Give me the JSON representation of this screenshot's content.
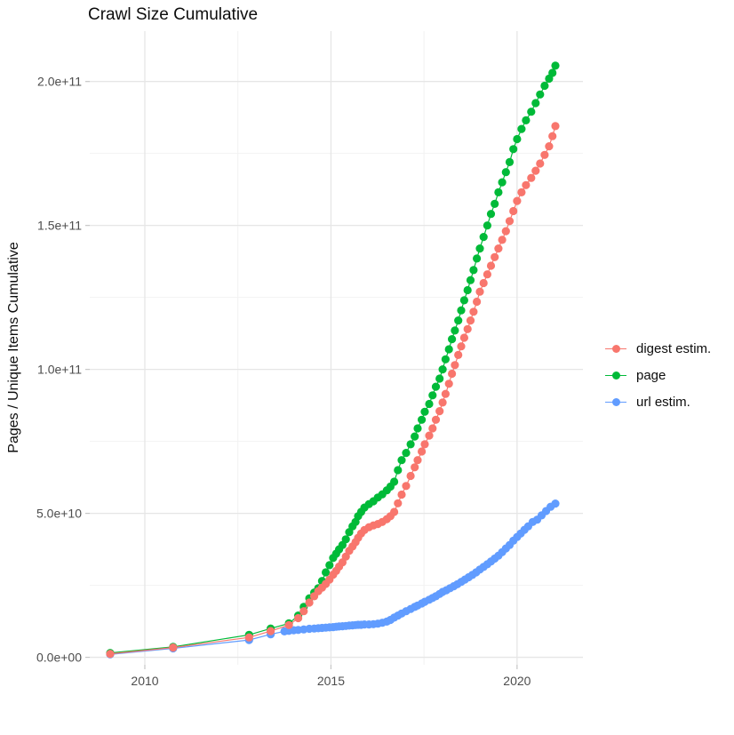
{
  "title": "Crawl Size Cumulative",
  "y_axis_title": "Pages / Unique Items Cumulative",
  "legend": {
    "items": [
      {
        "label": "digest estim.",
        "color": "#F8766D"
      },
      {
        "label": "page",
        "color": "#00BA38"
      },
      {
        "label": "url estim.",
        "color": "#619CFF"
      }
    ]
  },
  "colors": {
    "digest": "#F8766D",
    "page": "#00BA38",
    "url": "#619CFF",
    "grid_major": "#e6e6e6",
    "grid_minor": "#f2f2f2",
    "tick_mark": "#c6c6c6",
    "axis_text": "#4d4d4d"
  },
  "chart_data": {
    "type": "scatter",
    "title": "Crawl Size Cumulative",
    "xlabel": "",
    "ylabel": "Pages / Unique Items Cumulative",
    "xlim": [
      2008.52,
      2021.77
    ],
    "ylim": [
      -2600000000.0,
      217500000000.0
    ],
    "grid": true,
    "legend_position": "right",
    "x_ticks": {
      "values": [
        2010,
        2015,
        2020
      ],
      "labels": [
        "2010",
        "2015",
        "2020"
      ],
      "minor": [
        2012.5,
        2017.5
      ]
    },
    "y_ticks": {
      "values": [
        0,
        50000000000.0,
        100000000000.0,
        150000000000.0,
        200000000000.0
      ],
      "labels": [
        "0.0e+00",
        "5.0e+10",
        "1.0e+11",
        "1.5e+11",
        "2.0e+11"
      ],
      "minor": [
        25000000000.0,
        75000000000.0,
        125000000000.0,
        175000000000.0
      ]
    },
    "series": [
      {
        "name": "digest estim.",
        "color": "#F8766D",
        "points": [
          [
            2009.07,
            1200000000.0
          ],
          [
            2010.76,
            3400000000.0
          ],
          [
            2012.8,
            6900000000.0
          ],
          [
            2013.38,
            9100000000.0
          ],
          [
            2013.87,
            11200000000.0
          ],
          [
            2014.12,
            13600000000.0
          ],
          [
            2014.27,
            16000000000.0
          ],
          [
            2014.42,
            19000000000.0
          ],
          [
            2014.55,
            21200000000.0
          ],
          [
            2014.66,
            23000000000.0
          ],
          [
            2014.76,
            24200000000.0
          ],
          [
            2014.86,
            25500000000.0
          ],
          [
            2014.96,
            27000000000.0
          ],
          [
            2015.06,
            28700000000.0
          ],
          [
            2015.14,
            30000000000.0
          ],
          [
            2015.22,
            31500000000.0
          ],
          [
            2015.31,
            33000000000.0
          ],
          [
            2015.4,
            35000000000.0
          ],
          [
            2015.49,
            37000000000.0
          ],
          [
            2015.58,
            38500000000.0
          ],
          [
            2015.66,
            40000000000.0
          ],
          [
            2015.73,
            41500000000.0
          ],
          [
            2015.81,
            43000000000.0
          ],
          [
            2015.9,
            44200000000.0
          ],
          [
            2016.02,
            45200000000.0
          ],
          [
            2016.14,
            45800000000.0
          ],
          [
            2016.26,
            46300000000.0
          ],
          [
            2016.38,
            47000000000.0
          ],
          [
            2016.5,
            48000000000.0
          ],
          [
            2016.6,
            49000000000.0
          ],
          [
            2016.7,
            50500000000.0
          ],
          [
            2016.8,
            53500000000.0
          ],
          [
            2016.9,
            56500000000.0
          ],
          [
            2017.02,
            59500000000.0
          ],
          [
            2017.14,
            63000000000.0
          ],
          [
            2017.25,
            66000000000.0
          ],
          [
            2017.33,
            68500000000.0
          ],
          [
            2017.44,
            71500000000.0
          ],
          [
            2017.52,
            74000000000.0
          ],
          [
            2017.64,
            77000000000.0
          ],
          [
            2017.73,
            79500000000.0
          ],
          [
            2017.82,
            82500000000.0
          ],
          [
            2017.92,
            85500000000.0
          ],
          [
            2018.0,
            88500000000.0
          ],
          [
            2018.08,
            91500000000.0
          ],
          [
            2018.17,
            95000000000.0
          ],
          [
            2018.25,
            98500000000.0
          ],
          [
            2018.33,
            101500000000.0
          ],
          [
            2018.42,
            105000000000.0
          ],
          [
            2018.5,
            108000000000.0
          ],
          [
            2018.58,
            111000000000.0
          ],
          [
            2018.67,
            114000000000.0
          ],
          [
            2018.75,
            117000000000.0
          ],
          [
            2018.83,
            120000000000.0
          ],
          [
            2018.92,
            123500000000.0
          ],
          [
            2019.0,
            127000000000.0
          ],
          [
            2019.1,
            130000000000.0
          ],
          [
            2019.2,
            133000000000.0
          ],
          [
            2019.3,
            136000000000.0
          ],
          [
            2019.4,
            139000000000.0
          ],
          [
            2019.5,
            142000000000.0
          ],
          [
            2019.6,
            145000000000.0
          ],
          [
            2019.7,
            148000000000.0
          ],
          [
            2019.8,
            151500000000.0
          ],
          [
            2019.9,
            155000000000.0
          ],
          [
            2020.0,
            158500000000.0
          ],
          [
            2020.12,
            161500000000.0
          ],
          [
            2020.24,
            164000000000.0
          ],
          [
            2020.38,
            166500000000.0
          ],
          [
            2020.5,
            169000000000.0
          ],
          [
            2020.62,
            171500000000.0
          ],
          [
            2020.74,
            174500000000.0
          ],
          [
            2020.86,
            177500000000.0
          ],
          [
            2020.95,
            181000000000.0
          ],
          [
            2021.03,
            184500000000.0
          ]
        ]
      },
      {
        "name": "page",
        "color": "#00BA38",
        "points": [
          [
            2009.07,
            1500000000.0
          ],
          [
            2010.76,
            3600000000.0
          ],
          [
            2012.8,
            7800000000.0
          ],
          [
            2013.38,
            10000000000.0
          ],
          [
            2013.87,
            11800000000.0
          ],
          [
            2014.12,
            14500000000.0
          ],
          [
            2014.27,
            17500000000.0
          ],
          [
            2014.42,
            20500000000.0
          ],
          [
            2014.55,
            22500000000.0
          ],
          [
            2014.66,
            24000000000.0
          ],
          [
            2014.76,
            26500000000.0
          ],
          [
            2014.86,
            29500000000.0
          ],
          [
            2014.96,
            32000000000.0
          ],
          [
            2015.06,
            34500000000.0
          ],
          [
            2015.14,
            36000000000.0
          ],
          [
            2015.22,
            37500000000.0
          ],
          [
            2015.31,
            39000000000.0
          ],
          [
            2015.4,
            41000000000.0
          ],
          [
            2015.49,
            43500000000.0
          ],
          [
            2015.58,
            45500000000.0
          ],
          [
            2015.66,
            47000000000.0
          ],
          [
            2015.73,
            49000000000.0
          ],
          [
            2015.81,
            50500000000.0
          ],
          [
            2015.9,
            52000000000.0
          ],
          [
            2016.02,
            53200000000.0
          ],
          [
            2016.14,
            54200000000.0
          ],
          [
            2016.26,
            55500000000.0
          ],
          [
            2016.38,
            56600000000.0
          ],
          [
            2016.5,
            58000000000.0
          ],
          [
            2016.6,
            59300000000.0
          ],
          [
            2016.7,
            61000000000.0
          ],
          [
            2016.8,
            65000000000.0
          ],
          [
            2016.9,
            68500000000.0
          ],
          [
            2017.02,
            71000000000.0
          ],
          [
            2017.14,
            74000000000.0
          ],
          [
            2017.25,
            76700000000.0
          ],
          [
            2017.33,
            79500000000.0
          ],
          [
            2017.44,
            82500000000.0
          ],
          [
            2017.52,
            85300000000.0
          ],
          [
            2017.64,
            88000000000.0
          ],
          [
            2017.73,
            91000000000.0
          ],
          [
            2017.82,
            94000000000.0
          ],
          [
            2017.92,
            96800000000.0
          ],
          [
            2018.0,
            100000000000.0
          ],
          [
            2018.08,
            103500000000.0
          ],
          [
            2018.17,
            107000000000.0
          ],
          [
            2018.25,
            110500000000.0
          ],
          [
            2018.33,
            113500000000.0
          ],
          [
            2018.42,
            117000000000.0
          ],
          [
            2018.5,
            120500000000.0
          ],
          [
            2018.58,
            124000000000.0
          ],
          [
            2018.67,
            127500000000.0
          ],
          [
            2018.75,
            131000000000.0
          ],
          [
            2018.83,
            134500000000.0
          ],
          [
            2018.92,
            138500000000.0
          ],
          [
            2019.0,
            142000000000.0
          ],
          [
            2019.1,
            146000000000.0
          ],
          [
            2019.2,
            150000000000.0
          ],
          [
            2019.3,
            154000000000.0
          ],
          [
            2019.4,
            157500000000.0
          ],
          [
            2019.5,
            161500000000.0
          ],
          [
            2019.6,
            165000000000.0
          ],
          [
            2019.7,
            168500000000.0
          ],
          [
            2019.8,
            172000000000.0
          ],
          [
            2019.9,
            176500000000.0
          ],
          [
            2020.0,
            180000000000.0
          ],
          [
            2020.12,
            183500000000.0
          ],
          [
            2020.24,
            186500000000.0
          ],
          [
            2020.38,
            189500000000.0
          ],
          [
            2020.5,
            192500000000.0
          ],
          [
            2020.62,
            195500000000.0
          ],
          [
            2020.74,
            198500000000.0
          ],
          [
            2020.86,
            201000000000.0
          ],
          [
            2020.95,
            203000000000.0
          ],
          [
            2021.03,
            205500000000.0
          ]
        ]
      },
      {
        "name": "url estim.",
        "color": "#619CFF",
        "points": [
          [
            2009.07,
            1000000000.0
          ],
          [
            2010.76,
            3100000000.0
          ],
          [
            2012.8,
            6000000000.0
          ],
          [
            2013.38,
            8000000000.0
          ],
          [
            2013.75,
            9000000000.0
          ],
          [
            2013.87,
            9200000000.0
          ],
          [
            2014.0,
            9400000000.0
          ],
          [
            2014.12,
            9500000000.0
          ],
          [
            2014.27,
            9700000000.0
          ],
          [
            2014.42,
            9900000000.0
          ],
          [
            2014.55,
            10000000000.0
          ],
          [
            2014.66,
            10100000000.0
          ],
          [
            2014.76,
            10200000000.0
          ],
          [
            2014.86,
            10300000000.0
          ],
          [
            2014.96,
            10400000000.0
          ],
          [
            2015.06,
            10500000000.0
          ],
          [
            2015.14,
            10600000000.0
          ],
          [
            2015.22,
            10700000000.0
          ],
          [
            2015.31,
            10800000000.0
          ],
          [
            2015.4,
            10900000000.0
          ],
          [
            2015.49,
            11000000000.0
          ],
          [
            2015.58,
            11100000000.0
          ],
          [
            2015.66,
            11200000000.0
          ],
          [
            2015.73,
            11300000000.0
          ],
          [
            2015.81,
            11300000000.0
          ],
          [
            2015.9,
            11400000000.0
          ],
          [
            2016.02,
            11400000000.0
          ],
          [
            2016.14,
            11500000000.0
          ],
          [
            2016.26,
            11700000000.0
          ],
          [
            2016.38,
            12000000000.0
          ],
          [
            2016.5,
            12400000000.0
          ],
          [
            2016.6,
            13000000000.0
          ],
          [
            2016.7,
            13800000000.0
          ],
          [
            2016.8,
            14500000000.0
          ],
          [
            2016.9,
            15200000000.0
          ],
          [
            2017.02,
            16000000000.0
          ],
          [
            2017.14,
            16800000000.0
          ],
          [
            2017.25,
            17500000000.0
          ],
          [
            2017.33,
            18000000000.0
          ],
          [
            2017.44,
            18700000000.0
          ],
          [
            2017.52,
            19300000000.0
          ],
          [
            2017.64,
            20000000000.0
          ],
          [
            2017.73,
            20600000000.0
          ],
          [
            2017.82,
            21200000000.0
          ],
          [
            2017.92,
            22000000000.0
          ],
          [
            2018.0,
            22700000000.0
          ],
          [
            2018.1,
            23300000000.0
          ],
          [
            2018.2,
            24000000000.0
          ],
          [
            2018.3,
            24700000000.0
          ],
          [
            2018.4,
            25400000000.0
          ],
          [
            2018.5,
            26200000000.0
          ],
          [
            2018.6,
            27000000000.0
          ],
          [
            2018.7,
            27800000000.0
          ],
          [
            2018.8,
            28600000000.0
          ],
          [
            2018.9,
            29500000000.0
          ],
          [
            2019.0,
            30500000000.0
          ],
          [
            2019.1,
            31400000000.0
          ],
          [
            2019.2,
            32300000000.0
          ],
          [
            2019.3,
            33300000000.0
          ],
          [
            2019.4,
            34300000000.0
          ],
          [
            2019.5,
            35300000000.0
          ],
          [
            2019.6,
            36500000000.0
          ],
          [
            2019.7,
            37800000000.0
          ],
          [
            2019.8,
            39000000000.0
          ],
          [
            2019.9,
            40500000000.0
          ],
          [
            2020.0,
            41800000000.0
          ],
          [
            2020.1,
            43000000000.0
          ],
          [
            2020.2,
            44300000000.0
          ],
          [
            2020.3,
            45500000000.0
          ],
          [
            2020.42,
            47000000000.0
          ],
          [
            2020.54,
            47800000000.0
          ],
          [
            2020.66,
            49300000000.0
          ],
          [
            2020.78,
            50800000000.0
          ],
          [
            2020.9,
            52300000000.0
          ],
          [
            2021.03,
            53400000000.0
          ]
        ]
      }
    ]
  }
}
